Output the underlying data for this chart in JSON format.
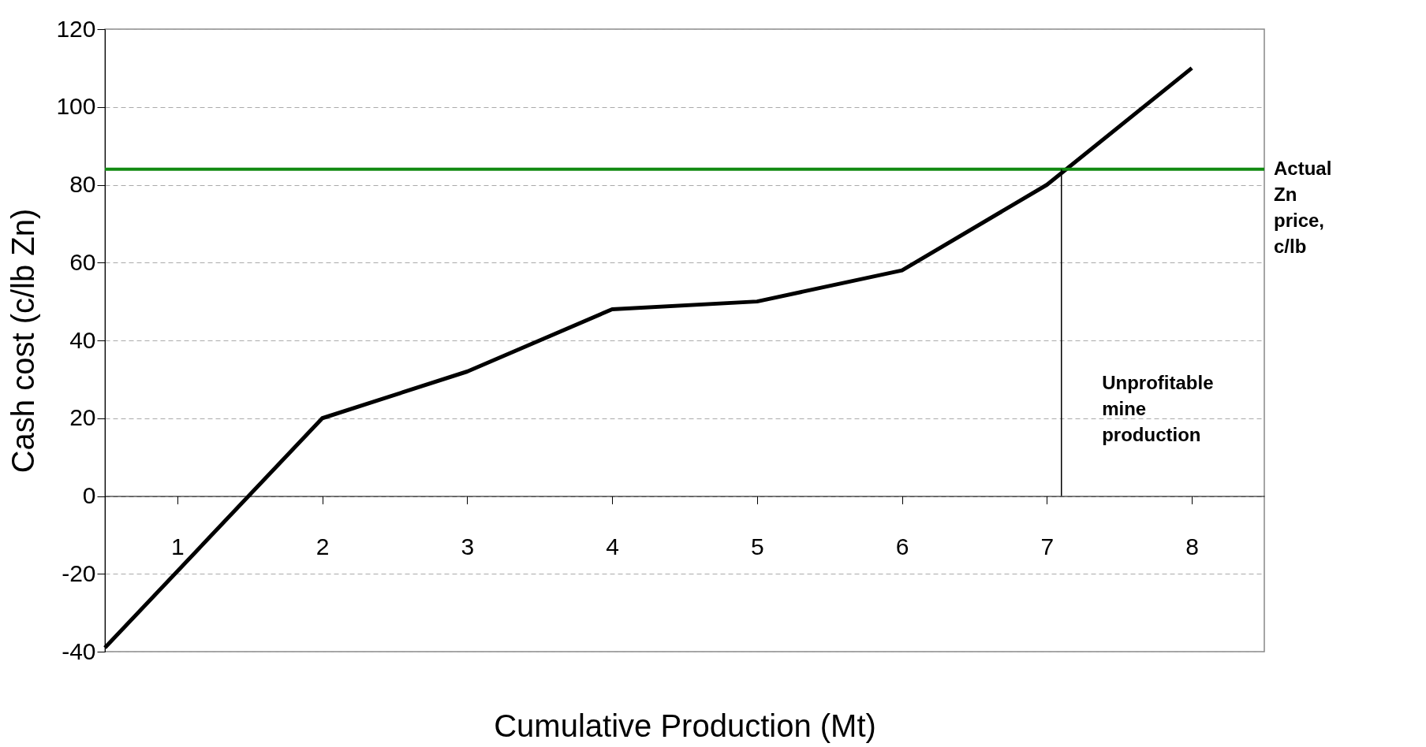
{
  "chart_data": {
    "type": "line",
    "xlabel": "Cumulative Production (Mt)",
    "ylabel": "Cash cost (c/lb Zn)",
    "x": [
      0.5,
      2,
      3,
      4,
      5,
      6,
      7,
      8
    ],
    "series": [
      {
        "color": "#000000",
        "values": [
          -39,
          20,
          32,
          48,
          50,
          58,
          80,
          110
        ]
      }
    ],
    "xlim": [
      0.5,
      8.5
    ],
    "xticks": [
      1,
      2,
      3,
      4,
      5,
      6,
      7,
      8
    ],
    "ylim": [
      -40,
      120
    ],
    "yticks": [
      -40,
      -20,
      0,
      20,
      40,
      60,
      80,
      100,
      120
    ],
    "grid": "y",
    "marker": "none",
    "line_style": "solid",
    "ref_lines": [
      {
        "axis": "y",
        "value": 84,
        "label": "Actual Zn price, c/lb",
        "color": "#128a12"
      },
      {
        "axis": "x",
        "value": 7.1,
        "color": "#000000"
      }
    ],
    "annotations": [
      "Unprofitable mine production"
    ]
  }
}
